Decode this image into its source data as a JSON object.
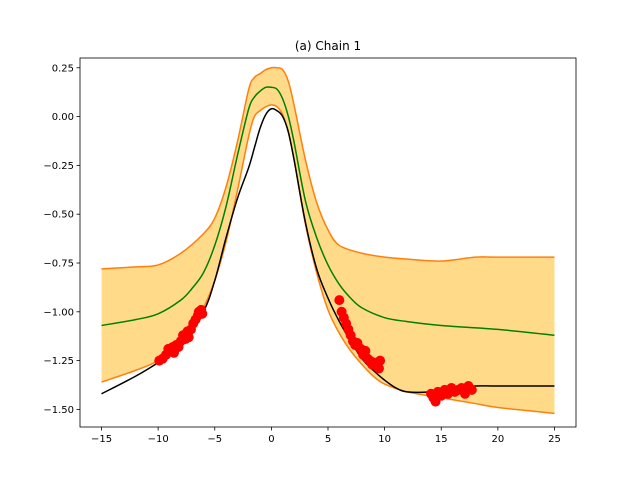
{
  "chart_data": {
    "type": "line",
    "title": "(a) Chain 1",
    "xlabel": "",
    "ylabel": "",
    "xlim": [
      -16.9,
      26.9
    ],
    "ylim": [
      -1.59,
      0.3
    ],
    "xticks": [
      -15,
      -10,
      -5,
      0,
      5,
      10,
      15,
      20,
      25
    ],
    "yticks": [
      0.25,
      0.0,
      -0.25,
      -0.5,
      -0.75,
      -1.0,
      -1.25,
      -1.5
    ],
    "xtick_labels": [
      "−15",
      "−10",
      "−5",
      "0",
      "5",
      "10",
      "15",
      "20",
      "25"
    ],
    "ytick_labels": [
      "0.25",
      "0.00",
      "−0.25",
      "−0.50",
      "−0.75",
      "−1.00",
      "−1.25",
      "−1.50"
    ],
    "grid": false,
    "legend": "none",
    "colors": {
      "true_function": "#000000",
      "mean": "#008000",
      "band_edge": "#ff7f0e",
      "band_fill": "#ffd983",
      "observations": "#ff0000"
    },
    "series": [
      {
        "role": "true_function",
        "x": [
          -15,
          -12,
          -10,
          -8,
          -6,
          -5,
          -4,
          -3,
          -2,
          -1.5,
          -1,
          -0.5,
          0,
          0.5,
          1,
          1.5,
          2,
          3,
          4,
          5,
          6,
          7,
          8,
          9,
          10,
          11,
          12,
          14,
          16,
          18,
          20,
          25
        ],
        "y": [
          -1.42,
          -1.33,
          -1.26,
          -1.18,
          -1.0,
          -0.84,
          -0.62,
          -0.42,
          -0.26,
          -0.16,
          -0.06,
          0.01,
          0.04,
          0.03,
          0.0,
          -0.08,
          -0.22,
          -0.54,
          -0.78,
          -0.93,
          -1.05,
          -1.15,
          -1.24,
          -1.3,
          -1.35,
          -1.39,
          -1.41,
          -1.41,
          -1.39,
          -1.38,
          -1.38,
          -1.38
        ]
      },
      {
        "role": "mean",
        "x": [
          -15,
          -12,
          -10,
          -8,
          -7,
          -6,
          -5,
          -4,
          -3,
          -2,
          -1.5,
          -1,
          -0.5,
          0,
          0.5,
          1,
          1.5,
          2,
          3,
          4,
          5,
          6,
          7,
          8,
          10,
          12,
          15,
          20,
          25
        ],
        "y": [
          -1.07,
          -1.04,
          -1.01,
          -0.94,
          -0.88,
          -0.8,
          -0.66,
          -0.46,
          -0.2,
          0.04,
          0.1,
          0.13,
          0.15,
          0.15,
          0.14,
          0.09,
          0.0,
          -0.13,
          -0.43,
          -0.62,
          -0.76,
          -0.86,
          -0.93,
          -0.98,
          -1.03,
          -1.05,
          -1.07,
          -1.09,
          -1.12
        ]
      },
      {
        "role": "band_upper",
        "x": [
          -15,
          -12,
          -10,
          -8,
          -6,
          -5,
          -4,
          -3,
          -2,
          -1.5,
          -1,
          -0.5,
          0,
          0.5,
          1,
          1.5,
          2,
          3,
          4,
          5,
          6,
          8,
          10,
          12,
          15,
          18,
          20,
          25
        ],
        "y": [
          -0.78,
          -0.77,
          -0.76,
          -0.7,
          -0.6,
          -0.52,
          -0.36,
          -0.13,
          0.14,
          0.2,
          0.22,
          0.24,
          0.25,
          0.25,
          0.24,
          0.18,
          0.06,
          -0.22,
          -0.44,
          -0.58,
          -0.66,
          -0.7,
          -0.72,
          -0.73,
          -0.74,
          -0.72,
          -0.72,
          -0.72
        ]
      },
      {
        "role": "band_lower",
        "x": [
          -15,
          -12,
          -10,
          -8,
          -7,
          -6,
          -5,
          -4,
          -3,
          -2,
          -1.5,
          -1,
          -0.5,
          0,
          0.5,
          1,
          1.5,
          2,
          3,
          4,
          5,
          6,
          7,
          8,
          9,
          10,
          12,
          15,
          18,
          20,
          25
        ],
        "y": [
          -1.36,
          -1.3,
          -1.25,
          -1.16,
          -1.08,
          -0.98,
          -0.84,
          -0.64,
          -0.38,
          -0.1,
          0.0,
          0.03,
          0.05,
          0.06,
          0.05,
          0.01,
          -0.08,
          -0.22,
          -0.55,
          -0.8,
          -0.99,
          -1.11,
          -1.2,
          -1.27,
          -1.33,
          -1.37,
          -1.41,
          -1.44,
          -1.47,
          -1.49,
          -1.52
        ]
      }
    ],
    "observations": {
      "x": [
        -9.9,
        -9.6,
        -9.3,
        -9.1,
        -8.9,
        -8.7,
        -8.6,
        -8.4,
        -8.2,
        -8.0,
        -7.8,
        -7.6,
        -7.4,
        -7.3,
        -7.1,
        -6.9,
        -6.7,
        -6.5,
        -6.4,
        -6.2,
        -6.1,
        6.0,
        6.2,
        6.4,
        6.6,
        6.8,
        7.0,
        7.2,
        7.4,
        7.6,
        7.9,
        8.1,
        8.3,
        8.5,
        8.7,
        8.9,
        9.1,
        9.3,
        9.5,
        9.6,
        14.1,
        14.3,
        14.5,
        14.7,
        15.0,
        15.3,
        15.6,
        15.9,
        16.2,
        16.5,
        16.8,
        17.1,
        17.4,
        17.7
      ],
      "y": [
        -1.25,
        -1.24,
        -1.22,
        -1.19,
        -1.2,
        -1.18,
        -1.21,
        -1.17,
        -1.18,
        -1.15,
        -1.12,
        -1.14,
        -1.1,
        -1.13,
        -1.09,
        -1.06,
        -1.04,
        -1.02,
        -1.0,
        -0.99,
        -1.01,
        -0.94,
        -1.0,
        -1.03,
        -1.06,
        -1.09,
        -1.12,
        -1.15,
        -1.17,
        -1.16,
        -1.19,
        -1.22,
        -1.2,
        -1.24,
        -1.25,
        -1.27,
        -1.26,
        -1.28,
        -1.29,
        -1.25,
        -1.42,
        -1.44,
        -1.46,
        -1.41,
        -1.43,
        -1.4,
        -1.42,
        -1.39,
        -1.41,
        -1.4,
        -1.39,
        -1.42,
        -1.38,
        -1.4
      ]
    }
  }
}
